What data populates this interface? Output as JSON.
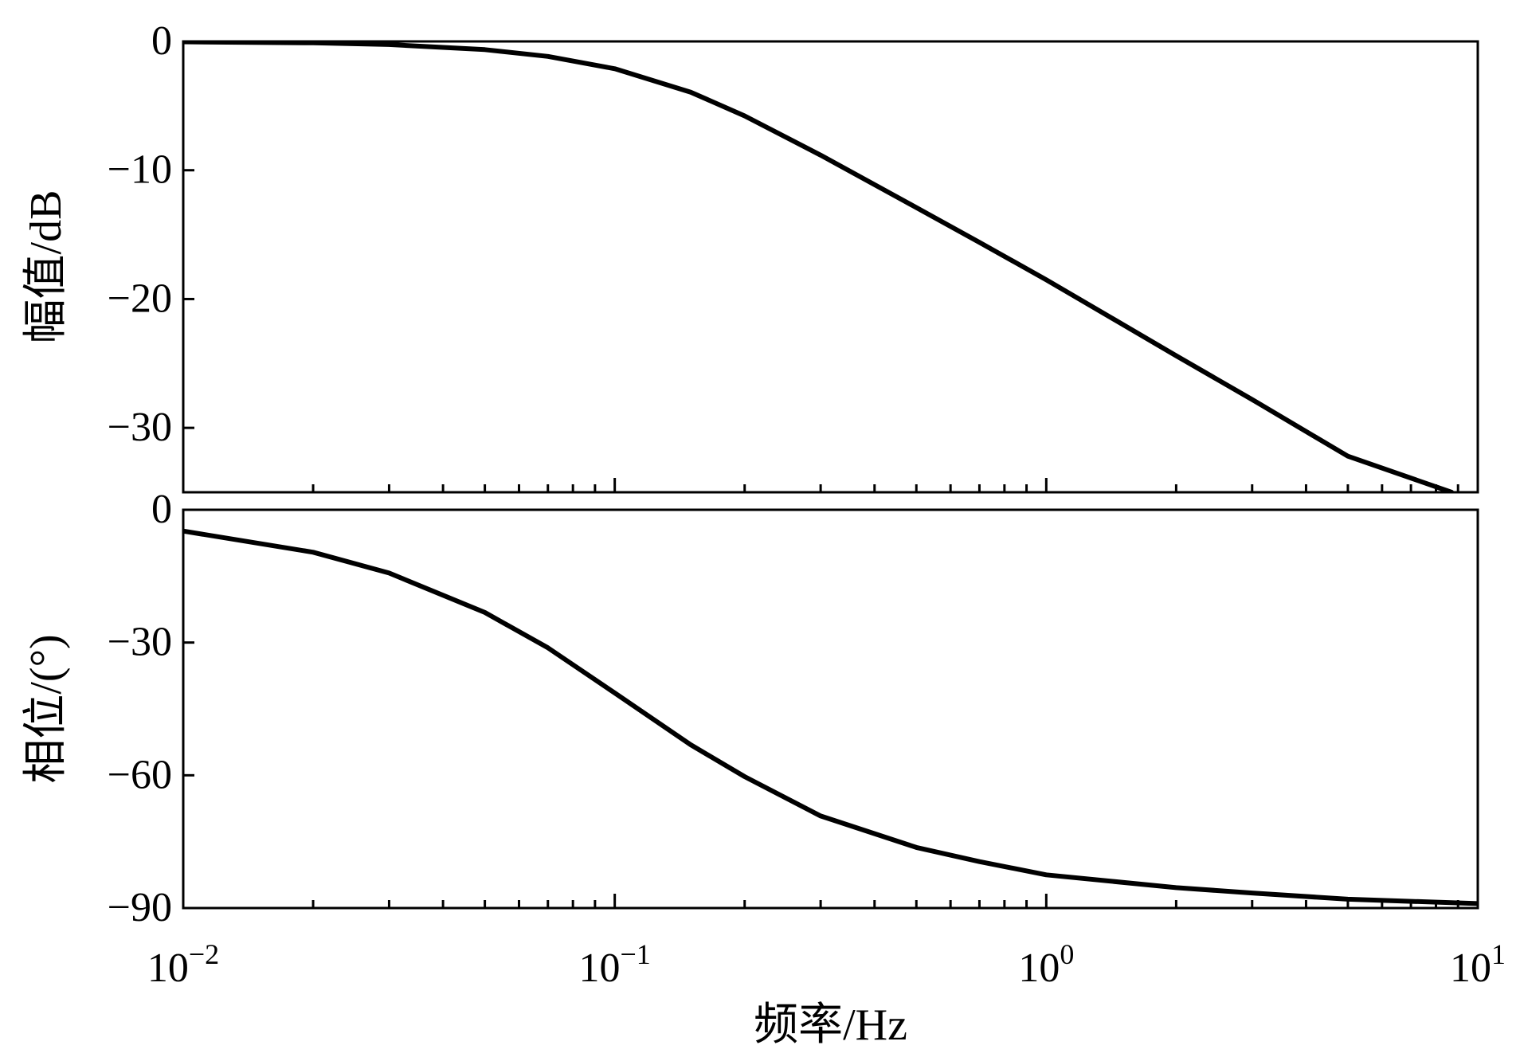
{
  "chart_data": [
    {
      "type": "line",
      "panel": "magnitude",
      "ylabel": "幅值/dB",
      "xscale": "log",
      "xlim": [
        0.01,
        10
      ],
      "ylim": [
        -35,
        0
      ],
      "yticks": [
        {
          "value": 0,
          "label": "0"
        },
        {
          "value": -10,
          "label": "−10"
        },
        {
          "value": -20,
          "label": "−20"
        },
        {
          "value": -30,
          "label": "−30"
        }
      ],
      "series": [
        {
          "x": [
            0.01,
            0.02,
            0.03,
            0.05,
            0.07,
            0.1,
            0.15,
            0.2,
            0.3,
            0.5,
            0.7,
            1,
            2,
            3,
            5,
            8.7
          ],
          "y": [
            -0.03,
            -0.11,
            -0.24,
            -0.64,
            -1.16,
            -2.12,
            -3.94,
            -5.78,
            -8.83,
            -12.9,
            -15.6,
            -18.5,
            -24.4,
            -27.8,
            -32.2,
            -35.0
          ]
        }
      ],
      "color": "#000000"
    },
    {
      "type": "line",
      "panel": "phase",
      "ylabel": "相位/(°)",
      "xlabel": "频率/Hz",
      "xscale": "log",
      "xlim": [
        0.01,
        10
      ],
      "ylim": [
        -90,
        0
      ],
      "yticks": [
        {
          "value": 0,
          "label": "0"
        },
        {
          "value": -30,
          "label": "−30"
        },
        {
          "value": -60,
          "label": "−60"
        },
        {
          "value": -90,
          "label": "−90"
        }
      ],
      "xticks": [
        {
          "value": 0.01,
          "base": "10",
          "exp": "−2"
        },
        {
          "value": 0.1,
          "base": "10",
          "exp": "−1"
        },
        {
          "value": 1,
          "base": "10",
          "exp": "0"
        },
        {
          "value": 10,
          "base": "10",
          "exp": "1"
        }
      ],
      "series": [
        {
          "x": [
            0.01,
            0.02,
            0.03,
            0.05,
            0.07,
            0.1,
            0.15,
            0.2,
            0.3,
            0.5,
            0.7,
            1,
            2,
            3,
            5,
            10
          ],
          "y": [
            -4.8,
            -9.6,
            -14.3,
            -23.2,
            -31.2,
            -41.4,
            -53.1,
            -60.3,
            -69.2,
            -76.3,
            -79.5,
            -82.5,
            -85.4,
            -86.6,
            -88.0,
            -89.0
          ]
        }
      ],
      "color": "#000000"
    }
  ]
}
